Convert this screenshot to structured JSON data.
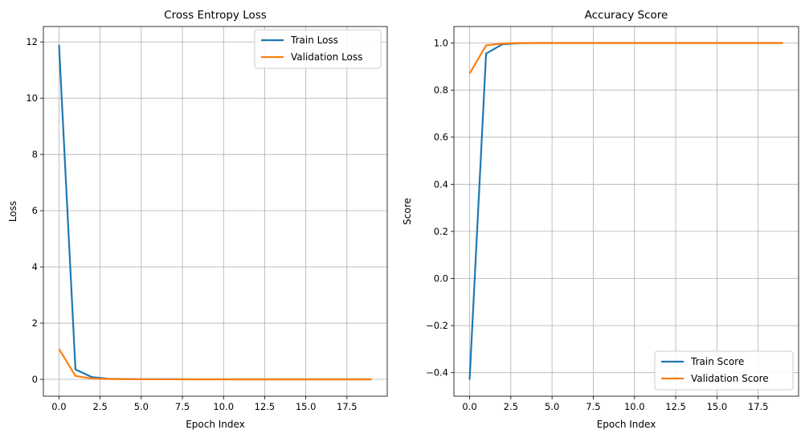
{
  "chart_data": [
    {
      "type": "line",
      "title": "Cross Entropy Loss",
      "xlabel": "Epoch Index",
      "ylabel": "Loss",
      "xlim": [
        -0.95,
        19.95
      ],
      "ylim": [
        -0.6,
        12.55
      ],
      "xticks": [
        0,
        2.5,
        5,
        7.5,
        10,
        12.5,
        15,
        17.5
      ],
      "xtick_labels": [
        "0.0",
        "2.5",
        "5.0",
        "7.5",
        "10.0",
        "12.5",
        "15.0",
        "17.5"
      ],
      "yticks": [
        0,
        2,
        4,
        6,
        8,
        10,
        12
      ],
      "ytick_labels": [
        "0",
        "2",
        "4",
        "6",
        "8",
        "10",
        "12"
      ],
      "grid": true,
      "legend_position": "top-right",
      "x": [
        0,
        1,
        2,
        3,
        4,
        5,
        6,
        7,
        8,
        9,
        10,
        11,
        12,
        13,
        14,
        15,
        16,
        17,
        18,
        19
      ],
      "series": [
        {
          "name": "Train Loss",
          "color": "#1f77b4",
          "values": [
            11.9,
            0.35,
            0.08,
            0.02,
            0.01,
            0.005,
            0.004,
            0.003,
            0.002,
            0.002,
            0.002,
            0.001,
            0.001,
            0.001,
            0.001,
            0.001,
            0.001,
            0.001,
            0.001,
            0.001
          ]
        },
        {
          "name": "Validation Loss",
          "color": "#ff7f0e",
          "values": [
            1.08,
            0.12,
            0.03,
            0.01,
            0.005,
            0.003,
            0.002,
            0.002,
            0.001,
            0.001,
            0.001,
            0.001,
            0.001,
            0.001,
            0.001,
            0.001,
            0.001,
            0.001,
            0.001,
            0.001
          ]
        }
      ]
    },
    {
      "type": "line",
      "title": "Accuracy Score",
      "xlabel": "Epoch Index",
      "ylabel": "Score",
      "xlim": [
        -0.95,
        19.95
      ],
      "ylim": [
        -0.5,
        1.07
      ],
      "xticks": [
        0,
        2.5,
        5,
        7.5,
        10,
        12.5,
        15,
        17.5
      ],
      "xtick_labels": [
        "0.0",
        "2.5",
        "5.0",
        "7.5",
        "10.0",
        "12.5",
        "15.0",
        "17.5"
      ],
      "yticks": [
        -0.4,
        -0.2,
        0.0,
        0.2,
        0.4,
        0.6,
        0.8,
        1.0
      ],
      "ytick_labels": [
        "−0.4",
        "−0.2",
        "0.0",
        "0.2",
        "0.4",
        "0.6",
        "0.8",
        "1.0"
      ],
      "grid": true,
      "legend_position": "bottom-right",
      "x": [
        0,
        1,
        2,
        3,
        4,
        5,
        6,
        7,
        8,
        9,
        10,
        11,
        12,
        13,
        14,
        15,
        16,
        17,
        18,
        19
      ],
      "series": [
        {
          "name": "Train Score",
          "color": "#1f77b4",
          "values": [
            -0.43,
            0.955,
            0.995,
            0.999,
            1.0,
            1.0,
            1.0,
            1.0,
            1.0,
            1.0,
            1.0,
            1.0,
            1.0,
            1.0,
            1.0,
            1.0,
            1.0,
            1.0,
            1.0,
            1.0
          ]
        },
        {
          "name": "Validation Score",
          "color": "#ff7f0e",
          "values": [
            0.87,
            0.99,
            0.998,
            1.0,
            1.0,
            1.0,
            1.0,
            1.0,
            1.0,
            1.0,
            1.0,
            1.0,
            1.0,
            1.0,
            1.0,
            1.0,
            1.0,
            1.0,
            1.0,
            1.0
          ]
        }
      ]
    }
  ]
}
